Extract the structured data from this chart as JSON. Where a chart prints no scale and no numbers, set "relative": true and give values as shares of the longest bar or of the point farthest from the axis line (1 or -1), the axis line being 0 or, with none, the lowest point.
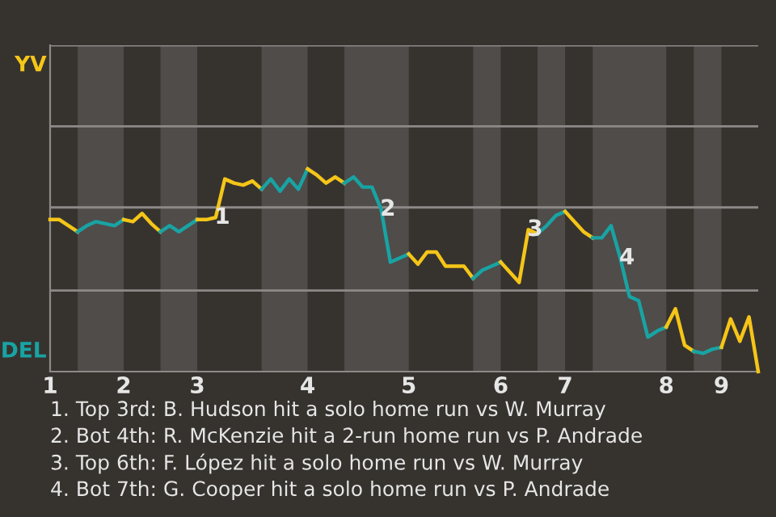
{
  "chart_data": {
    "type": "line",
    "relative": true,
    "categories": [
      "1",
      null,
      null,
      null,
      null,
      null,
      null,
      null,
      "2",
      null,
      null,
      null,
      null,
      null,
      null,
      null,
      "3",
      null,
      null,
      null,
      null,
      null,
      null,
      null,
      null,
      null,
      null,
      null,
      "4",
      null,
      null,
      null,
      null,
      null,
      null,
      null,
      null,
      null,
      null,
      "5",
      null,
      null,
      null,
      null,
      null,
      null,
      null,
      null,
      null,
      "6",
      null,
      null,
      null,
      null,
      null,
      null,
      "7",
      null,
      null,
      null,
      null,
      null,
      null,
      null,
      null,
      null,
      null,
      "8",
      null,
      null,
      null,
      null,
      null,
      "9",
      null,
      null,
      null,
      null
    ],
    "marker": "none",
    "line_style": "solid",
    "series": [
      {
        "name": "YV",
        "color": "#f5c518",
        "values": [
          0.75,
          0.75,
          0.72,
          0.69,
          null,
          null,
          null,
          null,
          null,
          null,
          null,
          null,
          null,
          null,
          null,
          null,
          null,
          null,
          null,
          null,
          null,
          null,
          null,
          null,
          null,
          null,
          null,
          null,
          null,
          null,
          null,
          null,
          null,
          null,
          null,
          null,
          null,
          null,
          null,
          null,
          null,
          null,
          null,
          null,
          null,
          null,
          null,
          null,
          null,
          null,
          null,
          null,
          null,
          null,
          null,
          null,
          null,
          null,
          null,
          null,
          null,
          null,
          null,
          null,
          null,
          null,
          null,
          null,
          null,
          null,
          null,
          null,
          null,
          null,
          null,
          null,
          null,
          null
        ]
      },
      {
        "name": "DEL",
        "color": "#19a3a3",
        "values": [
          null,
          null,
          null,
          0.69,
          0.72,
          0.74,
          0.73,
          0.72,
          0.75,
          null,
          null,
          null,
          null,
          null,
          null,
          null,
          null,
          null,
          null,
          null,
          null,
          null,
          null,
          null,
          null,
          null,
          null,
          null,
          null,
          null,
          null,
          null,
          null,
          null,
          null,
          null,
          null,
          null,
          null,
          null,
          null,
          null,
          null,
          null,
          null,
          null,
          null,
          null,
          null,
          null,
          null,
          null,
          null,
          null,
          null,
          null,
          null,
          null,
          null,
          null,
          null,
          null,
          null,
          null,
          null,
          null,
          null,
          null,
          null,
          null,
          null,
          null,
          null,
          null,
          null,
          null,
          null,
          null
        ]
      },
      {
        "color": "#f5c518",
        "values": [
          null,
          null,
          null,
          null,
          null,
          null,
          null,
          null,
          0.75,
          0.74,
          0.78,
          0.73,
          0.69,
          null,
          null,
          null,
          null,
          null,
          null,
          null,
          null,
          null,
          null,
          null,
          null,
          null,
          null,
          null,
          null,
          null,
          null,
          null,
          null,
          null,
          null,
          null,
          null,
          null,
          null,
          null,
          null,
          null,
          null,
          null,
          null,
          null,
          null,
          null,
          null,
          null,
          null,
          null,
          null,
          null,
          null,
          null,
          null,
          null,
          null,
          null,
          null,
          null,
          null,
          null,
          null,
          null,
          null,
          null,
          null,
          null,
          null,
          null,
          null,
          null,
          null,
          null,
          null,
          null
        ]
      },
      {
        "color": "#19a3a3",
        "values": [
          null,
          null,
          null,
          null,
          null,
          null,
          null,
          null,
          null,
          null,
          null,
          null,
          0.69,
          0.72,
          0.69,
          0.72,
          0.75,
          null,
          null,
          null,
          null,
          null,
          null,
          null,
          null,
          null,
          null,
          null,
          null,
          null,
          null,
          null,
          null,
          null,
          null,
          null,
          null,
          null,
          null,
          null,
          null,
          null,
          null,
          null,
          null,
          null,
          null,
          null,
          null,
          null,
          null,
          null,
          null,
          null,
          null,
          null,
          null,
          null,
          null,
          null,
          null,
          null,
          null,
          null,
          null,
          null,
          null,
          null,
          null,
          null,
          null,
          null,
          null,
          null,
          null,
          null,
          null,
          null
        ]
      },
      {
        "color": "#f5c518",
        "values": [
          null,
          null,
          null,
          null,
          null,
          null,
          null,
          null,
          null,
          null,
          null,
          null,
          null,
          null,
          null,
          null,
          0.75,
          0.75,
          0.76,
          0.95,
          0.93,
          0.92,
          0.94,
          0.9,
          null,
          null,
          null,
          null,
          null,
          null,
          null,
          null,
          null,
          null,
          null,
          null,
          null,
          null,
          null,
          null,
          null,
          null,
          null,
          null,
          null,
          null,
          null,
          null,
          null,
          null,
          null,
          null,
          null,
          null,
          null,
          null,
          null,
          null,
          null,
          null,
          null,
          null,
          null,
          null,
          null,
          null,
          null,
          null,
          null,
          null,
          null,
          null,
          null,
          null,
          null,
          null,
          null,
          null
        ]
      },
      {
        "color": "#19a3a3",
        "values": [
          null,
          null,
          null,
          null,
          null,
          null,
          null,
          null,
          null,
          null,
          null,
          null,
          null,
          null,
          null,
          null,
          null,
          null,
          null,
          null,
          null,
          null,
          null,
          0.9,
          0.95,
          0.89,
          0.95,
          0.9,
          1,
          null,
          null,
          null,
          null,
          null,
          null,
          null,
          null,
          null,
          null,
          null,
          null,
          null,
          null,
          null,
          null,
          null,
          null,
          null,
          null,
          null,
          null,
          null,
          null,
          null,
          null,
          null,
          null,
          null,
          null,
          null,
          null,
          null,
          null,
          null,
          null,
          null,
          null,
          null,
          null,
          null,
          null,
          null,
          null,
          null,
          null,
          null,
          null,
          null
        ]
      },
      {
        "color": "#f5c518",
        "values": [
          null,
          null,
          null,
          null,
          null,
          null,
          null,
          null,
          null,
          null,
          null,
          null,
          null,
          null,
          null,
          null,
          null,
          null,
          null,
          null,
          null,
          null,
          null,
          null,
          null,
          null,
          null,
          null,
          1,
          0.97,
          0.93,
          0.96,
          0.93,
          null,
          null,
          null,
          null,
          null,
          null,
          null,
          null,
          null,
          null,
          null,
          null,
          null,
          null,
          null,
          null,
          null,
          null,
          null,
          null,
          null,
          null,
          null,
          null,
          null,
          null,
          null,
          null,
          null,
          null,
          null,
          null,
          null,
          null,
          null,
          null,
          null,
          null,
          null,
          null,
          null,
          null,
          null,
          null,
          null
        ]
      },
      {
        "color": "#19a3a3",
        "values": [
          null,
          null,
          null,
          null,
          null,
          null,
          null,
          null,
          null,
          null,
          null,
          null,
          null,
          null,
          null,
          null,
          null,
          null,
          null,
          null,
          null,
          null,
          null,
          null,
          null,
          null,
          null,
          null,
          null,
          null,
          null,
          null,
          0.93,
          0.96,
          0.91,
          0.91,
          0.8,
          0.54,
          0.56,
          0.58,
          null,
          null,
          null,
          null,
          null,
          null,
          null,
          null,
          null,
          null,
          null,
          null,
          null,
          null,
          null,
          null,
          null,
          null,
          null,
          null,
          null,
          null,
          null,
          null,
          null,
          null,
          null,
          null,
          null,
          null,
          null,
          null,
          null,
          null,
          null,
          null,
          null,
          null
        ]
      },
      {
        "color": "#f5c518",
        "values": [
          null,
          null,
          null,
          null,
          null,
          null,
          null,
          null,
          null,
          null,
          null,
          null,
          null,
          null,
          null,
          null,
          null,
          null,
          null,
          null,
          null,
          null,
          null,
          null,
          null,
          null,
          null,
          null,
          null,
          null,
          null,
          null,
          null,
          null,
          null,
          null,
          null,
          null,
          null,
          0.58,
          0.53,
          0.59,
          0.59,
          0.52,
          0.52,
          0.52,
          0.46,
          null,
          null,
          null,
          null,
          null,
          null,
          null,
          null,
          null,
          null,
          null,
          null,
          null,
          null,
          null,
          null,
          null,
          null,
          null,
          null,
          null,
          null,
          null,
          null,
          null,
          null,
          null,
          null,
          null,
          null,
          null
        ]
      },
      {
        "color": "#19a3a3",
        "values": [
          null,
          null,
          null,
          null,
          null,
          null,
          null,
          null,
          null,
          null,
          null,
          null,
          null,
          null,
          null,
          null,
          null,
          null,
          null,
          null,
          null,
          null,
          null,
          null,
          null,
          null,
          null,
          null,
          null,
          null,
          null,
          null,
          null,
          null,
          null,
          null,
          null,
          null,
          null,
          null,
          null,
          null,
          null,
          null,
          null,
          null,
          0.46,
          0.5,
          0.52,
          0.54,
          null,
          null,
          null,
          null,
          null,
          null,
          null,
          null,
          null,
          null,
          null,
          null,
          null,
          null,
          null,
          null,
          null,
          null,
          null,
          null,
          null,
          null,
          null,
          null,
          null,
          null,
          null,
          null
        ]
      },
      {
        "color": "#f5c518",
        "values": [
          null,
          null,
          null,
          null,
          null,
          null,
          null,
          null,
          null,
          null,
          null,
          null,
          null,
          null,
          null,
          null,
          null,
          null,
          null,
          null,
          null,
          null,
          null,
          null,
          null,
          null,
          null,
          null,
          null,
          null,
          null,
          null,
          null,
          null,
          null,
          null,
          null,
          null,
          null,
          null,
          null,
          null,
          null,
          null,
          null,
          null,
          null,
          null,
          null,
          0.54,
          0.49,
          0.44,
          0.7,
          0.68,
          null,
          null,
          null,
          null,
          null,
          null,
          null,
          null,
          null,
          null,
          null,
          null,
          null,
          null,
          null,
          null,
          null,
          null,
          null,
          null,
          null,
          null,
          null,
          null
        ]
      },
      {
        "color": "#19a3a3",
        "values": [
          null,
          null,
          null,
          null,
          null,
          null,
          null,
          null,
          null,
          null,
          null,
          null,
          null,
          null,
          null,
          null,
          null,
          null,
          null,
          null,
          null,
          null,
          null,
          null,
          null,
          null,
          null,
          null,
          null,
          null,
          null,
          null,
          null,
          null,
          null,
          null,
          null,
          null,
          null,
          null,
          null,
          null,
          null,
          null,
          null,
          null,
          null,
          null,
          null,
          null,
          null,
          null,
          null,
          0.68,
          0.72,
          0.77,
          0.79,
          null,
          null,
          null,
          null,
          null,
          null,
          null,
          null,
          null,
          null,
          null,
          null,
          null,
          null,
          null,
          null,
          null,
          null,
          null,
          null,
          null
        ]
      },
      {
        "color": "#f5c518",
        "values": [
          null,
          null,
          null,
          null,
          null,
          null,
          null,
          null,
          null,
          null,
          null,
          null,
          null,
          null,
          null,
          null,
          null,
          null,
          null,
          null,
          null,
          null,
          null,
          null,
          null,
          null,
          null,
          null,
          null,
          null,
          null,
          null,
          null,
          null,
          null,
          null,
          null,
          null,
          null,
          null,
          null,
          null,
          null,
          null,
          null,
          null,
          null,
          null,
          null,
          null,
          null,
          null,
          null,
          null,
          null,
          null,
          0.79,
          0.74,
          0.69,
          0.66,
          null,
          null,
          null,
          null,
          null,
          null,
          null,
          null,
          null,
          null,
          null,
          null,
          null,
          null,
          null,
          null,
          null,
          null
        ]
      },
      {
        "color": "#19a3a3",
        "values": [
          null,
          null,
          null,
          null,
          null,
          null,
          null,
          null,
          null,
          null,
          null,
          null,
          null,
          null,
          null,
          null,
          null,
          null,
          null,
          null,
          null,
          null,
          null,
          null,
          null,
          null,
          null,
          null,
          null,
          null,
          null,
          null,
          null,
          null,
          null,
          null,
          null,
          null,
          null,
          null,
          null,
          null,
          null,
          null,
          null,
          null,
          null,
          null,
          null,
          null,
          null,
          null,
          null,
          null,
          null,
          null,
          null,
          null,
          null,
          0.66,
          0.66,
          0.72,
          0.56,
          0.37,
          0.35,
          0.17,
          0.2,
          0.22,
          null,
          null,
          null,
          null,
          null,
          null,
          null,
          null,
          null,
          null
        ]
      },
      {
        "color": "#f5c518",
        "values": [
          null,
          null,
          null,
          null,
          null,
          null,
          null,
          null,
          null,
          null,
          null,
          null,
          null,
          null,
          null,
          null,
          null,
          null,
          null,
          null,
          null,
          null,
          null,
          null,
          null,
          null,
          null,
          null,
          null,
          null,
          null,
          null,
          null,
          null,
          null,
          null,
          null,
          null,
          null,
          null,
          null,
          null,
          null,
          null,
          null,
          null,
          null,
          null,
          null,
          null,
          null,
          null,
          null,
          null,
          null,
          null,
          null,
          null,
          null,
          null,
          null,
          null,
          null,
          null,
          null,
          null,
          null,
          0.22,
          0.31,
          0.13,
          0.1,
          null,
          null,
          null,
          null,
          null,
          null,
          null
        ]
      },
      {
        "color": "#19a3a3",
        "values": [
          null,
          null,
          null,
          null,
          null,
          null,
          null,
          null,
          null,
          null,
          null,
          null,
          null,
          null,
          null,
          null,
          null,
          null,
          null,
          null,
          null,
          null,
          null,
          null,
          null,
          null,
          null,
          null,
          null,
          null,
          null,
          null,
          null,
          null,
          null,
          null,
          null,
          null,
          null,
          null,
          null,
          null,
          null,
          null,
          null,
          null,
          null,
          null,
          null,
          null,
          null,
          null,
          null,
          null,
          null,
          null,
          null,
          null,
          null,
          null,
          null,
          null,
          null,
          null,
          null,
          null,
          null,
          null,
          null,
          null,
          0.1,
          0.09,
          0.11,
          0.12,
          null,
          null,
          null,
          null
        ]
      },
      {
        "color": "#f5c518",
        "values": [
          null,
          null,
          null,
          null,
          null,
          null,
          null,
          null,
          null,
          null,
          null,
          null,
          null,
          null,
          null,
          null,
          null,
          null,
          null,
          null,
          null,
          null,
          null,
          null,
          null,
          null,
          null,
          null,
          null,
          null,
          null,
          null,
          null,
          null,
          null,
          null,
          null,
          null,
          null,
          null,
          null,
          null,
          null,
          null,
          null,
          null,
          null,
          null,
          null,
          null,
          null,
          null,
          null,
          null,
          null,
          null,
          null,
          null,
          null,
          null,
          null,
          null,
          null,
          null,
          null,
          null,
          null,
          null,
          null,
          null,
          null,
          null,
          null,
          0.12,
          0.26,
          0.15,
          0.27,
          0
        ]
      }
    ],
    "ref_lines": [
      {
        "axis": "y",
        "value": 0.4,
        "color": "#8c8a88"
      },
      {
        "axis": "y",
        "value": 0.81,
        "color": "#8c8a88"
      },
      {
        "axis": "y",
        "value": 1.21,
        "color": "#8c8a88"
      },
      {
        "axis": "y",
        "value": 1.61,
        "color": "#8c8a88"
      }
    ],
    "annotations": [
      {
        "text": "1",
        "y": 0.76
      },
      {
        "text": "2",
        "y": 0.8
      },
      {
        "text": "3",
        "y": 0.7
      },
      {
        "text": "4",
        "y": 0.56
      },
      "1. Top 3rd: B. Hudson hit a solo home run vs W. Murray",
      "2. Bot 4th: R. McKenzie hit a 2-run home run vs P. Andrade",
      "3. Top 6th: F. López hit a solo home run vs W. Murray",
      "4. Bot 7th: G. Cooper hit a solo home run vs P. Andrade"
    ]
  }
}
